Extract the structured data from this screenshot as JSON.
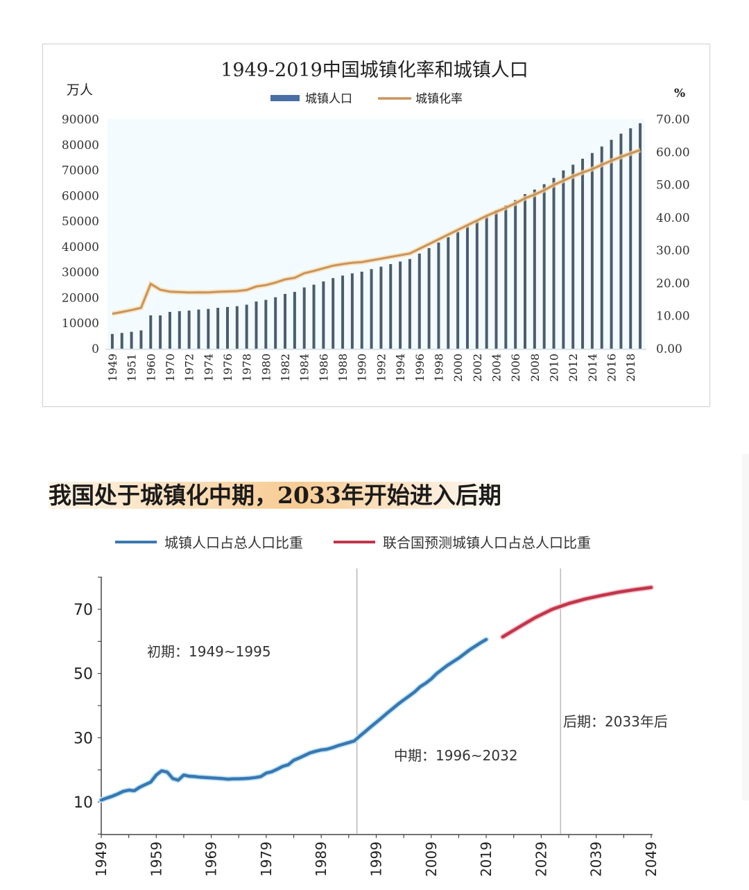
{
  "chart_data": [
    {
      "type": "bar+line",
      "title": "1949-2019中国城镇化率和城镇人口",
      "ylabel_left": "万人",
      "ylabel_right": "%",
      "legend": [
        {
          "name": "城镇人口",
          "color": "#4a6fa5",
          "kind": "bar"
        },
        {
          "name": "城镇化率",
          "color": "#c9935a",
          "kind": "line"
        }
      ],
      "legend_placement": "top-center",
      "ylim_left": [
        0,
        90000
      ],
      "ylim_right": [
        0,
        70
      ],
      "yticks_left": [
        "0",
        "10000",
        "20000",
        "30000",
        "40000",
        "50000",
        "60000",
        "70000",
        "80000",
        "90000"
      ],
      "yticks_right": [
        "0.00",
        "10.00",
        "20.00",
        "30.00",
        "40.00",
        "50.00",
        "60.00",
        "70.00"
      ],
      "categories": [
        "1949",
        "1950",
        "1951",
        "1952",
        "1960",
        "1965",
        "1970",
        "1971",
        "1972",
        "1973",
        "1974",
        "1975",
        "1976",
        "1977",
        "1978",
        "1979",
        "1980",
        "1981",
        "1982",
        "1983",
        "1984",
        "1985",
        "1986",
        "1987",
        "1988",
        "1989",
        "1990",
        "1991",
        "1992",
        "1993",
        "1994",
        "1995",
        "1996",
        "1997",
        "1998",
        "1999",
        "2000",
        "2001",
        "2002",
        "2003",
        "2004",
        "2005",
        "2006",
        "2007",
        "2008",
        "2009",
        "2010",
        "2011",
        "2012",
        "2013",
        "2014",
        "2015",
        "2016",
        "2017",
        "2018",
        "2019"
      ],
      "xtick_labels": [
        "1949",
        "1951",
        "1960",
        "1970",
        "1972",
        "1974",
        "1976",
        "1978",
        "1980",
        "1982",
        "1984",
        "1986",
        "1988",
        "1990",
        "1992",
        "1994",
        "1996",
        "1998",
        "2000",
        "2002",
        "2004",
        "2006",
        "2008",
        "2010",
        "2012",
        "2014",
        "2016",
        "2018"
      ],
      "series": [
        {
          "name": "城镇人口",
          "axis": "left",
          "values": [
            5765,
            6169,
            6632,
            7163,
            13073,
            13045,
            14424,
            14711,
            14935,
            15345,
            15595,
            16030,
            16341,
            16669,
            17245,
            18495,
            19140,
            20171,
            21480,
            22274,
            24017,
            25094,
            26366,
            27674,
            28661,
            29540,
            30195,
            31203,
            32175,
            33173,
            34169,
            35174,
            37304,
            39449,
            41608,
            43748,
            45906,
            48064,
            50212,
            52376,
            54283,
            56212,
            58288,
            60633,
            62403,
            64512,
            66978,
            69927,
            72175,
            74502,
            76738,
            79302,
            81924,
            84343,
            86433,
            88426
          ]
        },
        {
          "name": "城镇化率",
          "axis": "right",
          "values": [
            10.64,
            11.18,
            11.78,
            12.46,
            19.75,
            17.98,
            17.38,
            17.26,
            17.13,
            17.2,
            17.16,
            17.34,
            17.44,
            17.55,
            17.92,
            18.96,
            19.39,
            20.16,
            21.13,
            21.62,
            23.01,
            23.71,
            24.52,
            25.32,
            25.81,
            26.21,
            26.41,
            26.94,
            27.46,
            27.99,
            28.51,
            29.04,
            30.48,
            31.91,
            33.35,
            34.78,
            36.22,
            37.66,
            39.09,
            40.53,
            41.76,
            42.99,
            44.34,
            45.89,
            46.99,
            48.34,
            49.95,
            51.27,
            52.57,
            53.73,
            54.77,
            56.1,
            57.35,
            58.52,
            59.58,
            60.6
          ]
        }
      ]
    },
    {
      "type": "line",
      "headline": "我国处于城镇化中期，2033年开始进入后期",
      "legend": [
        {
          "name": "城镇人口占总人口比重",
          "color": "#3a77b0"
        },
        {
          "name": "联合国预测城镇人口占总人口比重",
          "color": "#c0364a"
        }
      ],
      "legend_placement": "top-center",
      "xlim": [
        1949,
        2050
      ],
      "ylim": [
        0,
        80
      ],
      "yticks": [
        "10",
        "30",
        "50",
        "70"
      ],
      "xticks": [
        "1949",
        "1959",
        "1969",
        "1979",
        "1989",
        "1999",
        "2009",
        "2019",
        "2029",
        "2039",
        "2049"
      ],
      "phase_dividers": [
        1995.5,
        2032.5
      ],
      "annotations": [
        "初期：1949~1995",
        "中期：1996~2032",
        "后期：2033年后"
      ],
      "series": [
        {
          "name": "城镇人口占总人口比重",
          "x": [
            1949,
            1950,
            1951,
            1952,
            1953,
            1954,
            1955,
            1956,
            1957,
            1958,
            1959,
            1960,
            1961,
            1962,
            1963,
            1964,
            1965,
            1966,
            1967,
            1968,
            1969,
            1970,
            1971,
            1972,
            1973,
            1974,
            1975,
            1976,
            1977,
            1978,
            1979,
            1980,
            1981,
            1982,
            1983,
            1984,
            1985,
            1986,
            1987,
            1988,
            1989,
            1990,
            1991,
            1992,
            1993,
            1994,
            1995,
            1996,
            1997,
            1998,
            1999,
            2000,
            2001,
            2002,
            2003,
            2004,
            2005,
            2006,
            2007,
            2008,
            2009,
            2010,
            2011,
            2012,
            2013,
            2014,
            2015,
            2016,
            2017,
            2018,
            2019
          ],
          "y": [
            10.6,
            11.2,
            11.8,
            12.5,
            13.3,
            13.7,
            13.5,
            14.6,
            15.4,
            16.2,
            18.4,
            19.7,
            19.3,
            17.3,
            16.8,
            18.4,
            18.0,
            17.9,
            17.7,
            17.6,
            17.5,
            17.4,
            17.3,
            17.1,
            17.2,
            17.2,
            17.3,
            17.4,
            17.6,
            17.9,
            19.0,
            19.4,
            20.2,
            21.1,
            21.6,
            23.0,
            23.7,
            24.5,
            25.3,
            25.8,
            26.2,
            26.4,
            26.9,
            27.5,
            28.0,
            28.5,
            29.0,
            30.5,
            31.9,
            33.4,
            34.8,
            36.2,
            37.7,
            39.1,
            40.5,
            41.8,
            43.0,
            44.3,
            45.9,
            47.0,
            48.3,
            50.0,
            51.3,
            52.6,
            53.7,
            54.8,
            56.1,
            57.4,
            58.5,
            59.6,
            60.6
          ]
        },
        {
          "name": "联合国预测城镇人口占总人口比重",
          "x": [
            2022,
            2025,
            2028,
            2031,
            2034,
            2037,
            2040,
            2043,
            2046,
            2049
          ],
          "y": [
            61.4,
            64.5,
            67.5,
            70.0,
            71.8,
            73.2,
            74.3,
            75.3,
            76.1,
            76.8
          ]
        }
      ]
    }
  ]
}
